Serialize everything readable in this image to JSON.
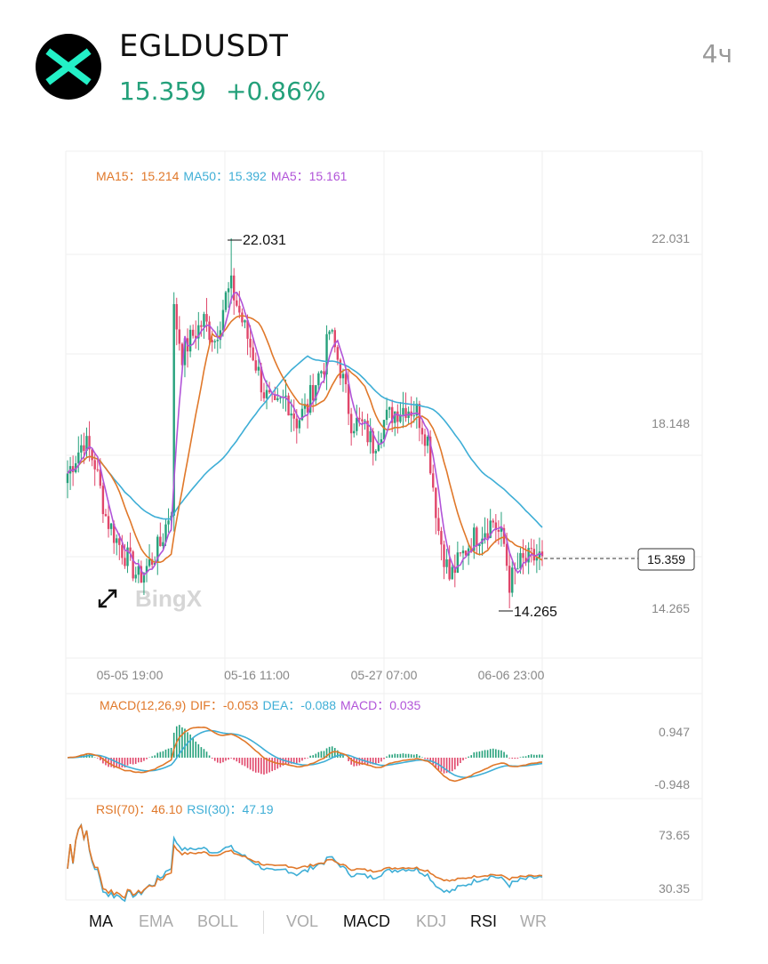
{
  "header": {
    "symbol": "EGLDUSDT",
    "price": "15.359",
    "change": "+0.86%",
    "interval": "4ч",
    "logo_icon": "egld-x-logo"
  },
  "main_chart": {
    "legend": [
      {
        "text": "MA15：15.214",
        "color": "#e0782a"
      },
      {
        "text": "MA50：15.392",
        "color": "#3eaed6"
      },
      {
        "text": "MA5：15.161",
        "color": "#b154d8"
      }
    ],
    "high_label": "22.031",
    "low_label": "14.265",
    "last_price_label": "15.359",
    "y_axis_labels": [
      "22.031",
      "18.148",
      "14.265"
    ],
    "x_axis_labels": [
      "05-05 19:00",
      "05-16 11:00",
      "05-27 07:00",
      "06-06 23:00"
    ],
    "watermark": "BingX",
    "expand_icon": "expand-arrows-icon"
  },
  "macd_panel": {
    "legend": [
      {
        "text": "MACD(12,26,9)",
        "color": "#e0782a"
      },
      {
        "text": "DIF：-0.053",
        "color": "#e0782a"
      },
      {
        "text": "DEA：-0.088",
        "color": "#3eaed6"
      },
      {
        "text": "MACD：0.035",
        "color": "#b154d8"
      }
    ],
    "y_axis_labels": [
      "0.947",
      "-0.948"
    ]
  },
  "rsi_panel": {
    "legend": [
      {
        "text": "RSI(70)：46.10",
        "color": "#e0782a"
      },
      {
        "text": "RSI(30)：47.19",
        "color": "#3eaed6"
      }
    ],
    "y_axis_labels": [
      "73.65",
      "30.35"
    ]
  },
  "indicator_tabs": [
    {
      "label": "MA",
      "active": true
    },
    {
      "label": "EMA",
      "active": false
    },
    {
      "label": "BOLL",
      "active": false
    },
    {
      "label": "VOL",
      "active": false
    },
    {
      "label": "MACD",
      "active": true
    },
    {
      "label": "KDJ",
      "active": false
    },
    {
      "label": "RSI",
      "active": true
    },
    {
      "label": "WR",
      "active": false
    }
  ],
  "colors": {
    "up": "#26a17b",
    "down": "#e0466a",
    "ma15": "#e0782a",
    "ma50": "#3eaed6",
    "ma5": "#b154d8",
    "accent": "#23a07a"
  },
  "chart_data": {
    "type": "candlestick",
    "symbol": "EGLDUSDT",
    "interval": "4ч",
    "y_range": [
      14.265,
      22.031
    ],
    "visible_high": 22.031,
    "visible_low": 14.265,
    "last_price": 15.359,
    "close_path": [
      [
        0,
        17.1
      ],
      [
        6,
        17.8
      ],
      [
        10,
        17.3
      ],
      [
        14,
        16.2
      ],
      [
        18,
        15.7
      ],
      [
        22,
        15.3
      ],
      [
        26,
        14.9
      ],
      [
        30,
        15.2
      ],
      [
        34,
        15.6
      ],
      [
        38,
        16.4
      ],
      [
        39,
        20.5
      ],
      [
        42,
        19.6
      ],
      [
        46,
        20.0
      ],
      [
        50,
        20.3
      ],
      [
        54,
        19.9
      ],
      [
        58,
        20.8
      ],
      [
        60,
        21.0
      ],
      [
        64,
        20.3
      ],
      [
        68,
        19.6
      ],
      [
        72,
        18.8
      ],
      [
        76,
        18.4
      ],
      [
        80,
        18.7
      ],
      [
        84,
        18.2
      ],
      [
        88,
        18.5
      ],
      [
        90,
        18.9
      ],
      [
        94,
        19.4
      ],
      [
        96,
        20.1
      ],
      [
        100,
        19.3
      ],
      [
        104,
        18.2
      ],
      [
        108,
        18.1
      ],
      [
        112,
        17.7
      ],
      [
        116,
        18.2
      ],
      [
        120,
        18.4
      ],
      [
        124,
        18.5
      ],
      [
        128,
        18.4
      ],
      [
        132,
        17.8
      ],
      [
        136,
        15.9
      ],
      [
        140,
        14.9
      ],
      [
        144,
        15.3
      ],
      [
        148,
        15.7
      ],
      [
        152,
        15.9
      ],
      [
        156,
        16.1
      ],
      [
        160,
        15.6
      ],
      [
        162,
        14.8
      ],
      [
        166,
        15.2
      ],
      [
        170,
        15.3
      ],
      [
        174,
        15.359
      ]
    ],
    "ma_last": {
      "MA15": 15.214,
      "MA50": 15.392,
      "MA5": 15.161
    },
    "x_tick_labels": [
      "05-05 19:00",
      "05-16 11:00",
      "05-27 07:00",
      "06-06 23:00"
    ],
    "macd": {
      "params": "12,26,9",
      "DIF": -0.053,
      "DEA": -0.088,
      "MACD": 0.035,
      "y_range": [
        -0.948,
        0.947
      ]
    },
    "rsi": {
      "RSI70": 46.1,
      "RSI30": 47.19,
      "y_range": [
        30.35,
        73.65
      ]
    }
  }
}
